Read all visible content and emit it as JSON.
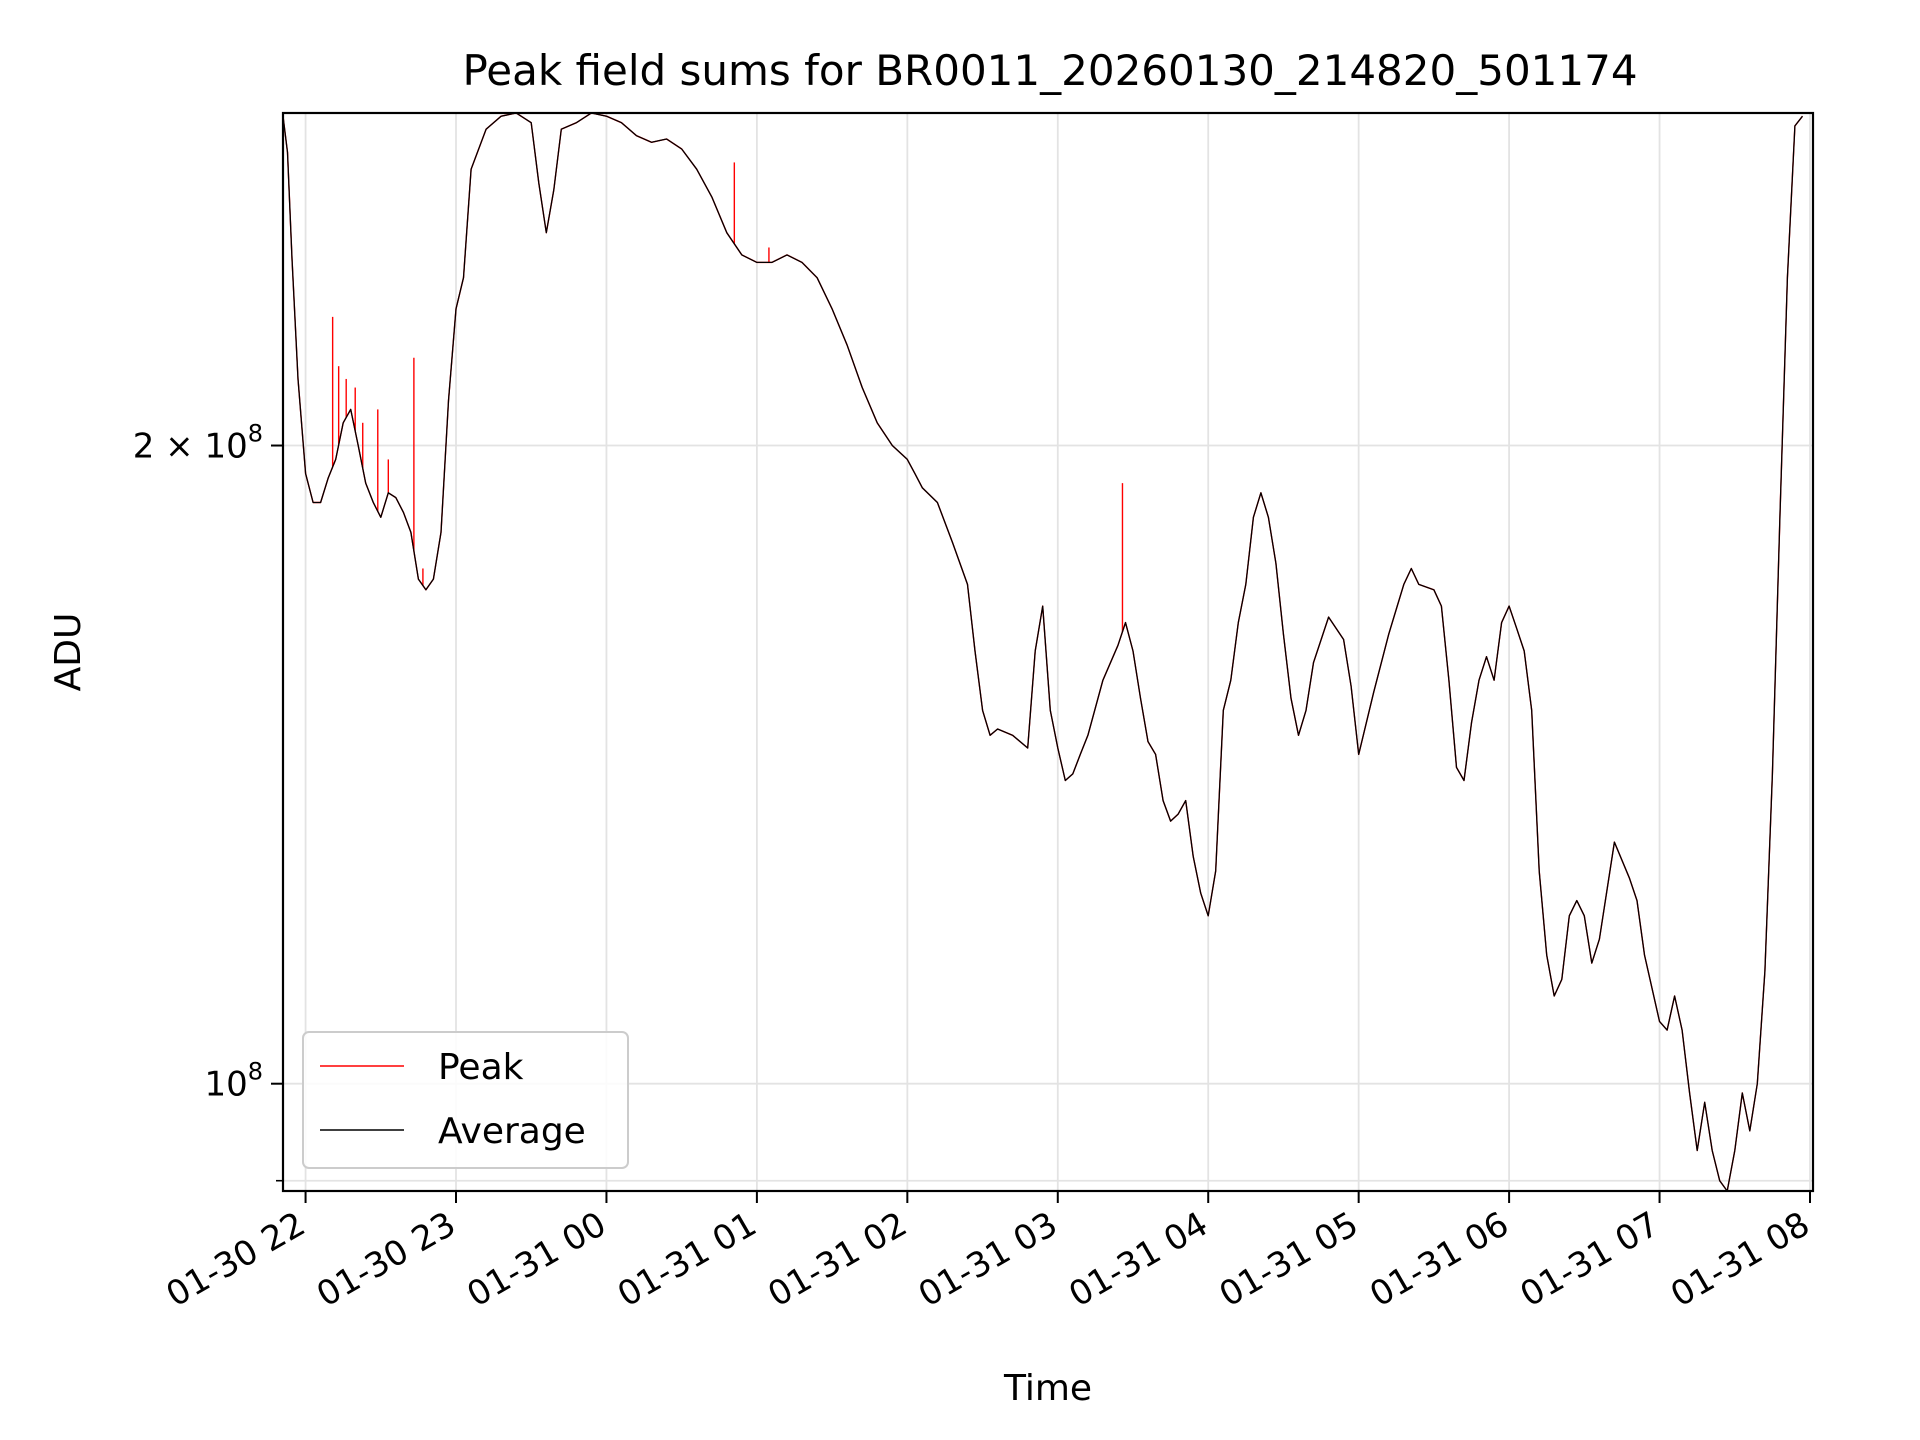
{
  "chart_data": {
    "type": "line",
    "title": "Peak field sums for BR0011_20260130_214820_501174",
    "xlabel": "Time",
    "ylabel": "ADU",
    "yscale": "log",
    "xlim": [
      -0.15,
      10.02
    ],
    "ylim": [
      89000000,
      287000000
    ],
    "grid": true,
    "x_unit": "hours since 01-30 22:00",
    "x_ticks": [
      {
        "value": 0,
        "label": "01-30 22"
      },
      {
        "value": 1,
        "label": "01-30 23"
      },
      {
        "value": 2,
        "label": "01-31 00"
      },
      {
        "value": 3,
        "label": "01-31 01"
      },
      {
        "value": 4,
        "label": "01-31 02"
      },
      {
        "value": 5,
        "label": "01-31 03"
      },
      {
        "value": 6,
        "label": "01-31 04"
      },
      {
        "value": 7,
        "label": "01-31 05"
      },
      {
        "value": 8,
        "label": "01-31 06"
      },
      {
        "value": 9,
        "label": "01-31 07"
      },
      {
        "value": 10,
        "label": "01-31 08"
      }
    ],
    "y_major_ticks": [
      {
        "value": 100000000,
        "base": "10",
        "exp": "8",
        "mantissa": ""
      },
      {
        "value": 200000000,
        "base": "10",
        "exp": "8",
        "mantissa": "2 × "
      }
    ],
    "y_minor_ticks": [
      90000000
    ],
    "legend": {
      "position": "lower-left",
      "entries": [
        "Peak",
        "Average"
      ]
    },
    "series": [
      {
        "name": "Average",
        "color": "#000000",
        "points": [
          [
            -0.15,
            286000000
          ],
          [
            -0.12,
            275000000
          ],
          [
            -0.09,
            245000000
          ],
          [
            -0.05,
            215000000
          ],
          [
            0.0,
            194000000
          ],
          [
            0.05,
            188000000
          ],
          [
            0.1,
            188000000
          ],
          [
            0.15,
            193000000
          ],
          [
            0.2,
            197000000
          ],
          [
            0.25,
            205000000
          ],
          [
            0.3,
            208000000
          ],
          [
            0.35,
            200000000
          ],
          [
            0.4,
            192000000
          ],
          [
            0.45,
            188000000
          ],
          [
            0.5,
            185000000
          ],
          [
            0.55,
            190000000
          ],
          [
            0.6,
            189000000
          ],
          [
            0.65,
            186000000
          ],
          [
            0.7,
            182000000
          ],
          [
            0.75,
            173000000
          ],
          [
            0.8,
            171000000
          ],
          [
            0.85,
            173000000
          ],
          [
            0.9,
            182000000
          ],
          [
            0.95,
            210000000
          ],
          [
            1.0,
            232000000
          ],
          [
            1.05,
            240000000
          ],
          [
            1.1,
            270000000
          ],
          [
            1.2,
            282000000
          ],
          [
            1.3,
            286000000
          ],
          [
            1.4,
            287000000
          ],
          [
            1.5,
            284000000
          ],
          [
            1.55,
            266000000
          ],
          [
            1.6,
            252000000
          ],
          [
            1.65,
            264000000
          ],
          [
            1.7,
            282000000
          ],
          [
            1.8,
            284000000
          ],
          [
            1.9,
            287000000
          ],
          [
            2.0,
            286000000
          ],
          [
            2.1,
            284000000
          ],
          [
            2.2,
            280000000
          ],
          [
            2.3,
            278000000
          ],
          [
            2.4,
            279000000
          ],
          [
            2.5,
            276000000
          ],
          [
            2.6,
            270000000
          ],
          [
            2.7,
            262000000
          ],
          [
            2.8,
            252000000
          ],
          [
            2.9,
            246000000
          ],
          [
            3.0,
            244000000
          ],
          [
            3.1,
            244000000
          ],
          [
            3.2,
            246000000
          ],
          [
            3.3,
            244000000
          ],
          [
            3.4,
            240000000
          ],
          [
            3.5,
            232000000
          ],
          [
            3.6,
            223000000
          ],
          [
            3.7,
            213000000
          ],
          [
            3.8,
            205000000
          ],
          [
            3.9,
            200000000
          ],
          [
            4.0,
            197000000
          ],
          [
            4.05,
            194000000
          ],
          [
            4.1,
            191000000
          ],
          [
            4.2,
            188000000
          ],
          [
            4.3,
            180000000
          ],
          [
            4.4,
            172000000
          ],
          [
            4.45,
            160000000
          ],
          [
            4.5,
            150000000
          ],
          [
            4.55,
            146000000
          ],
          [
            4.6,
            147000000
          ],
          [
            4.7,
            146000000
          ],
          [
            4.8,
            144000000
          ],
          [
            4.85,
            160000000
          ],
          [
            4.9,
            168000000
          ],
          [
            4.95,
            150000000
          ],
          [
            5.0,
            144000000
          ],
          [
            5.05,
            139000000
          ],
          [
            5.1,
            140000000
          ],
          [
            5.15,
            143000000
          ],
          [
            5.2,
            146000000
          ],
          [
            5.3,
            155000000
          ],
          [
            5.4,
            161000000
          ],
          [
            5.45,
            165000000
          ],
          [
            5.5,
            160000000
          ],
          [
            5.55,
            152000000
          ],
          [
            5.6,
            145000000
          ],
          [
            5.65,
            143000000
          ],
          [
            5.7,
            136000000
          ],
          [
            5.75,
            133000000
          ],
          [
            5.8,
            134000000
          ],
          [
            5.85,
            136000000
          ],
          [
            5.9,
            128000000
          ],
          [
            5.95,
            123000000
          ],
          [
            6.0,
            120000000
          ],
          [
            6.05,
            126000000
          ],
          [
            6.1,
            150000000
          ],
          [
            6.15,
            155000000
          ],
          [
            6.2,
            165000000
          ],
          [
            6.25,
            172000000
          ],
          [
            6.3,
            185000000
          ],
          [
            6.35,
            190000000
          ],
          [
            6.4,
            185000000
          ],
          [
            6.45,
            176000000
          ],
          [
            6.5,
            163000000
          ],
          [
            6.55,
            152000000
          ],
          [
            6.6,
            146000000
          ],
          [
            6.65,
            150000000
          ],
          [
            6.7,
            158000000
          ],
          [
            6.8,
            166000000
          ],
          [
            6.9,
            162000000
          ],
          [
            6.95,
            154000000
          ],
          [
            7.0,
            143000000
          ],
          [
            7.1,
            153000000
          ],
          [
            7.2,
            163000000
          ],
          [
            7.3,
            172000000
          ],
          [
            7.35,
            175000000
          ],
          [
            7.4,
            172000000
          ],
          [
            7.5,
            171000000
          ],
          [
            7.55,
            168000000
          ],
          [
            7.6,
            155000000
          ],
          [
            7.65,
            141000000
          ],
          [
            7.7,
            139000000
          ],
          [
            7.75,
            148000000
          ],
          [
            7.8,
            155000000
          ],
          [
            7.85,
            159000000
          ],
          [
            7.9,
            155000000
          ],
          [
            7.95,
            165000000
          ],
          [
            8.0,
            168000000
          ],
          [
            8.05,
            164000000
          ],
          [
            8.1,
            160000000
          ],
          [
            8.15,
            150000000
          ],
          [
            8.2,
            126000000
          ],
          [
            8.25,
            115000000
          ],
          [
            8.3,
            110000000
          ],
          [
            8.35,
            112000000
          ],
          [
            8.4,
            120000000
          ],
          [
            8.45,
            122000000
          ],
          [
            8.5,
            120000000
          ],
          [
            8.55,
            114000000
          ],
          [
            8.6,
            117000000
          ],
          [
            8.7,
            130000000
          ],
          [
            8.8,
            125000000
          ],
          [
            8.85,
            122000000
          ],
          [
            8.9,
            115000000
          ],
          [
            9.0,
            107000000
          ],
          [
            9.05,
            106000000
          ],
          [
            9.1,
            110000000
          ],
          [
            9.15,
            106000000
          ],
          [
            9.2,
            99000000
          ],
          [
            9.25,
            93000000
          ],
          [
            9.3,
            98000000
          ],
          [
            9.35,
            93000000
          ],
          [
            9.4,
            90000000
          ],
          [
            9.45,
            89000000
          ],
          [
            9.5,
            93000000
          ],
          [
            9.55,
            99000000
          ],
          [
            9.6,
            95000000
          ],
          [
            9.65,
            100000000
          ],
          [
            9.7,
            113000000
          ],
          [
            9.75,
            140000000
          ],
          [
            9.8,
            185000000
          ],
          [
            9.85,
            240000000
          ],
          [
            9.9,
            283000000
          ],
          [
            9.95,
            286000000
          ]
        ]
      },
      {
        "name": "Peak",
        "color": "#ff0000",
        "spikes": [
          [
            0.18,
            230000000
          ],
          [
            0.22,
            218000000
          ],
          [
            0.27,
            215000000
          ],
          [
            0.33,
            213000000
          ],
          [
            0.38,
            205000000
          ],
          [
            0.48,
            208000000
          ],
          [
            0.55,
            197000000
          ],
          [
            0.72,
            220000000
          ],
          [
            0.78,
            175000000
          ],
          [
            2.85,
            272000000
          ],
          [
            3.08,
            248000000
          ],
          [
            5.43,
            192000000
          ]
        ]
      }
    ]
  }
}
